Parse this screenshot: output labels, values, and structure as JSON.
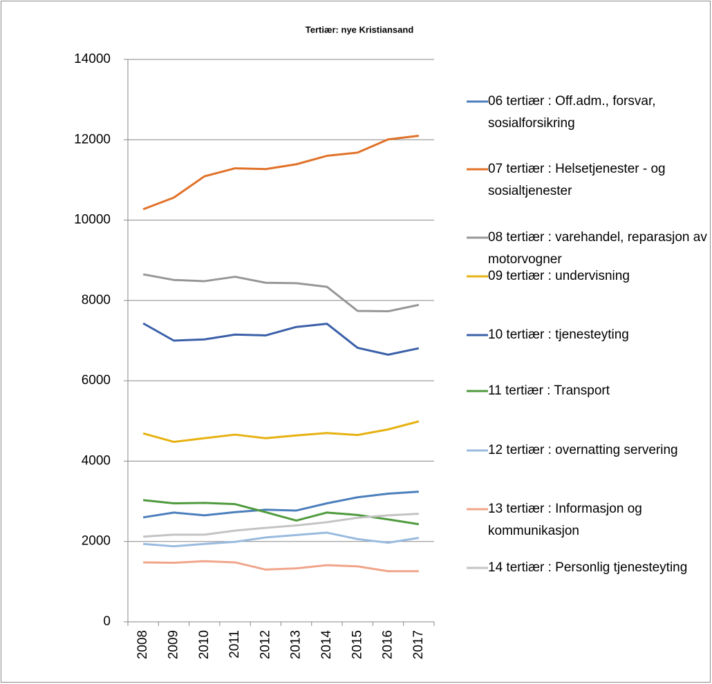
{
  "chart_data": {
    "type": "line",
    "title": "Tertiær: nye Kristiansand",
    "categories": [
      "2008",
      "2009",
      "2010",
      "2011",
      "2012",
      "2013",
      "2014",
      "2015",
      "2016",
      "2017"
    ],
    "ylim": [
      0,
      14000
    ],
    "yticks": [
      0,
      2000,
      4000,
      6000,
      8000,
      10000,
      12000,
      14000
    ],
    "grid": true,
    "legend": "right",
    "series": [
      {
        "name": "06 tertiær : Off.adm., forsvar, sosialforsikring",
        "color": "#4a7ebb",
        "values": [
          2600,
          2720,
          2650,
          2730,
          2790,
          2770,
          2950,
          3100,
          3190,
          3240
        ]
      },
      {
        "name": "07 tertiær : Helsetjenester - og sosialtjenester",
        "color": "#e07128",
        "values": [
          10270,
          10560,
          11090,
          11290,
          11270,
          11390,
          11600,
          11680,
          12010,
          12100
        ]
      },
      {
        "name": "08 tertiær : varehandel, reparasjon av motorvogner",
        "color": "#969696",
        "values": [
          8650,
          8510,
          8480,
          8590,
          8440,
          8430,
          8340,
          7740,
          7730,
          7890
        ]
      },
      {
        "name": "09 tertiær : undervisning",
        "color": "#e6b110",
        "values": [
          4690,
          4480,
          4570,
          4660,
          4570,
          4640,
          4700,
          4650,
          4790,
          4990
        ]
      },
      {
        "name": "10 tertiær : tjenesteyting",
        "color": "#3a5fa8",
        "values": [
          7430,
          7000,
          7030,
          7150,
          7130,
          7340,
          7420,
          6820,
          6650,
          6810
        ]
      },
      {
        "name": "11 tertiær : Transport",
        "color": "#4e9a3c",
        "values": [
          3030,
          2950,
          2960,
          2930,
          2730,
          2520,
          2720,
          2660,
          2550,
          2430
        ]
      },
      {
        "name": "12 tertiær : overnatting servering",
        "color": "#99badf",
        "values": [
          1940,
          1880,
          1940,
          1990,
          2100,
          2160,
          2220,
          2060,
          1970,
          2090
        ]
      },
      {
        "name": "13 tertiær : Informasjon og kommunikasjon",
        "color": "#f0a48a",
        "values": [
          1480,
          1470,
          1510,
          1480,
          1300,
          1330,
          1410,
          1380,
          1260,
          1260
        ]
      },
      {
        "name": "14 tertiær : Personlig tjenesteyting",
        "color": "#c3c3c3",
        "values": [
          2120,
          2170,
          2170,
          2270,
          2340,
          2400,
          2480,
          2590,
          2650,
          2690
        ]
      }
    ]
  }
}
